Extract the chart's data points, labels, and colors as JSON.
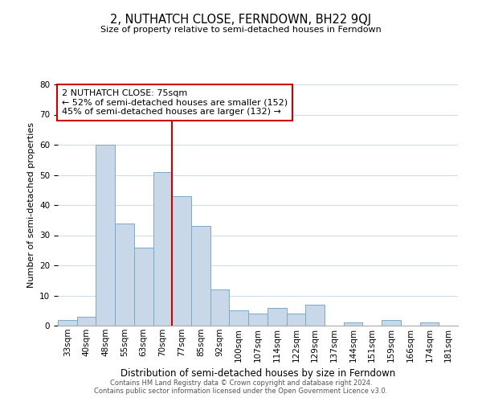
{
  "title": "2, NUTHATCH CLOSE, FERNDOWN, BH22 9QJ",
  "subtitle": "Size of property relative to semi-detached houses in Ferndown",
  "xlabel": "Distribution of semi-detached houses by size in Ferndown",
  "ylabel": "Number of semi-detached properties",
  "bar_labels": [
    "33sqm",
    "40sqm",
    "48sqm",
    "55sqm",
    "63sqm",
    "70sqm",
    "77sqm",
    "85sqm",
    "92sqm",
    "100sqm",
    "107sqm",
    "114sqm",
    "122sqm",
    "129sqm",
    "137sqm",
    "144sqm",
    "151sqm",
    "159sqm",
    "166sqm",
    "174sqm",
    "181sqm"
  ],
  "bar_values": [
    2,
    3,
    60,
    34,
    26,
    51,
    43,
    33,
    12,
    5,
    4,
    6,
    4,
    7,
    0,
    1,
    0,
    2,
    0,
    1,
    0
  ],
  "bar_color": "#c8d8e8",
  "bar_edge_color": "#7aaac8",
  "highlight_line_color": "#cc0000",
  "annotation_title": "2 NUTHATCH CLOSE: 75sqm",
  "annotation_line1": "← 52% of semi-detached houses are smaller (152)",
  "annotation_line2": "45% of semi-detached houses are larger (132) →",
  "annotation_box_edge_color": "#cc0000",
  "ylim": [
    0,
    80
  ],
  "yticks": [
    0,
    10,
    20,
    30,
    40,
    50,
    60,
    70,
    80
  ],
  "footer1": "Contains HM Land Registry data © Crown copyright and database right 2024.",
  "footer2": "Contains public sector information licensed under the Open Government Licence v3.0.",
  "background_color": "#ffffff",
  "grid_color": "#d0dce8",
  "title_fontsize": 10.5,
  "subtitle_fontsize": 8,
  "ylabel_fontsize": 8,
  "xlabel_fontsize": 8.5,
  "tick_fontsize": 7.5,
  "footer_fontsize": 6,
  "annotation_fontsize": 8
}
